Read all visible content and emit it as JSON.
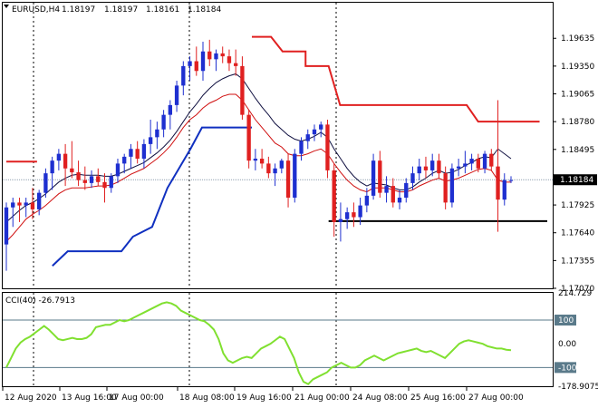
{
  "header": {
    "symbol": "EURUSD,H4",
    "open": "1.18197",
    "high": "1.18197",
    "low": "1.18161",
    "close": "1.18184"
  },
  "colors": {
    "bull": "#1e2fd0",
    "bear": "#e02020",
    "ma_fast": "#d01010",
    "ma_slow": "#101040",
    "stop_upper": "#e02020",
    "stop_lower": "#1030c0",
    "support": "#000000",
    "cci": "#80e030",
    "price_badge": "#000000"
  },
  "chart_data": [
    {
      "type": "candlestick",
      "ylim": [
        1.1707,
        1.2
      ],
      "y_ticks": [
        "1.19635",
        "1.19350",
        "1.19065",
        "1.18780",
        "1.18495",
        "1.17925",
        "1.17640",
        "1.17355",
        "1.17070"
      ],
      "current_price_label": "1.18184",
      "current_price": 1.18184,
      "x_ticks": [
        "12 Aug 2020",
        "13 Aug 16:00",
        "17 Aug 00:00",
        "18 Aug 08:00",
        "19 Aug 16:00",
        "21 Aug 00:00",
        "24 Aug 08:00",
        "25 Aug 16:00",
        "27 Aug 00:00"
      ],
      "candles": [
        [
          1.1752,
          1.1795,
          1.1725,
          1.179
        ],
        [
          1.179,
          1.18,
          1.177,
          1.1795
        ],
        [
          1.1795,
          1.18,
          1.1775,
          1.1792
        ],
        [
          1.1792,
          1.18,
          1.178,
          1.1795
        ],
        [
          1.1795,
          1.181,
          1.1778,
          1.1788
        ],
        [
          1.1788,
          1.1808,
          1.1782,
          1.1805
        ],
        [
          1.1805,
          1.183,
          1.18,
          1.1825
        ],
        [
          1.1825,
          1.1842,
          1.1808,
          1.1838
        ],
        [
          1.1838,
          1.185,
          1.1828,
          1.1845
        ],
        [
          1.1845,
          1.1855,
          1.1812,
          1.183
        ],
        [
          1.183,
          1.1858,
          1.182,
          1.1826
        ],
        [
          1.1826,
          1.1838,
          1.1812,
          1.1818
        ],
        [
          1.1818,
          1.1832,
          1.1808,
          1.1815
        ],
        [
          1.1815,
          1.1828,
          1.181,
          1.1822
        ],
        [
          1.1822,
          1.183,
          1.1812,
          1.1816
        ],
        [
          1.1816,
          1.1825,
          1.1795,
          1.181
        ],
        [
          1.181,
          1.1825,
          1.1805,
          1.1822
        ],
        [
          1.1822,
          1.184,
          1.1815,
          1.1835
        ],
        [
          1.1835,
          1.1845,
          1.1825,
          1.1842
        ],
        [
          1.1842,
          1.1855,
          1.183,
          1.185
        ],
        [
          1.185,
          1.1858,
          1.1835,
          1.184
        ],
        [
          1.184,
          1.186,
          1.183,
          1.1855
        ],
        [
          1.1855,
          1.188,
          1.1845,
          1.1862
        ],
        [
          1.1862,
          1.1878,
          1.185,
          1.187
        ],
        [
          1.187,
          1.189,
          1.1862,
          1.1885
        ],
        [
          1.1885,
          1.19,
          1.187,
          1.1895
        ],
        [
          1.1895,
          1.192,
          1.1888,
          1.1915
        ],
        [
          1.1915,
          1.194,
          1.1905,
          1.1935
        ],
        [
          1.1935,
          1.1945,
          1.192,
          1.194
        ],
        [
          1.194,
          1.1955,
          1.1925,
          1.193
        ],
        [
          1.193,
          1.196,
          1.192,
          1.195
        ],
        [
          1.195,
          1.1962,
          1.1935,
          1.1942
        ],
        [
          1.1942,
          1.1952,
          1.193,
          1.1948
        ],
        [
          1.1948,
          1.1955,
          1.1938,
          1.1945
        ],
        [
          1.1945,
          1.1952,
          1.193,
          1.1938
        ],
        [
          1.1938,
          1.1952,
          1.1925,
          1.1935
        ],
        [
          1.1935,
          1.1945,
          1.188,
          1.1885
        ],
        [
          1.1885,
          1.189,
          1.183,
          1.1838
        ],
        [
          1.1838,
          1.185,
          1.1828,
          1.184
        ],
        [
          1.184,
          1.185,
          1.183,
          1.1835
        ],
        [
          1.1835,
          1.1842,
          1.182,
          1.1825
        ],
        [
          1.1825,
          1.1835,
          1.1812,
          1.183
        ],
        [
          1.183,
          1.184,
          1.1825,
          1.1838
        ],
        [
          1.1838,
          1.1845,
          1.179,
          1.18
        ],
        [
          1.18,
          1.185,
          1.1795,
          1.1845
        ],
        [
          1.1845,
          1.1862,
          1.1838,
          1.1858
        ],
        [
          1.1858,
          1.187,
          1.185,
          1.1865
        ],
        [
          1.1865,
          1.1875,
          1.1858,
          1.187
        ],
        [
          1.187,
          1.1878,
          1.1862,
          1.1875
        ],
        [
          1.1875,
          1.188,
          1.182,
          1.1828
        ],
        [
          1.1828,
          1.1835,
          1.176,
          1.1775
        ],
        [
          1.1775,
          1.1795,
          1.1755,
          1.1778
        ],
        [
          1.1778,
          1.179,
          1.1768,
          1.1785
        ],
        [
          1.1785,
          1.1795,
          1.177,
          1.178
        ],
        [
          1.178,
          1.18,
          1.1772,
          1.1792
        ],
        [
          1.1792,
          1.181,
          1.1785,
          1.1802
        ],
        [
          1.1802,
          1.1845,
          1.1798,
          1.1838
        ],
        [
          1.1838,
          1.1848,
          1.18,
          1.1805
        ],
        [
          1.1805,
          1.1822,
          1.1795,
          1.1812
        ],
        [
          1.1812,
          1.182,
          1.179,
          1.1795
        ],
        [
          1.1795,
          1.1808,
          1.1788,
          1.18
        ],
        [
          1.18,
          1.182,
          1.1795,
          1.1815
        ],
        [
          1.1815,
          1.1832,
          1.1808,
          1.1825
        ],
        [
          1.1825,
          1.184,
          1.1818,
          1.1832
        ],
        [
          1.1832,
          1.1842,
          1.182,
          1.1828
        ],
        [
          1.1828,
          1.1845,
          1.1822,
          1.1838
        ],
        [
          1.1838,
          1.1845,
          1.182,
          1.1825
        ],
        [
          1.1825,
          1.1832,
          1.1788,
          1.1795
        ],
        [
          1.1795,
          1.1835,
          1.179,
          1.183
        ],
        [
          1.183,
          1.184,
          1.1822,
          1.1832
        ],
        [
          1.1832,
          1.1848,
          1.1825,
          1.1835
        ],
        [
          1.1835,
          1.1845,
          1.1828,
          1.184
        ],
        [
          1.184,
          1.1845,
          1.1826,
          1.183
        ],
        [
          1.183,
          1.1848,
          1.1825,
          1.1845
        ],
        [
          1.1845,
          1.185,
          1.1828,
          1.1832
        ],
        [
          1.1832,
          1.19,
          1.1765,
          1.1798
        ],
        [
          1.1798,
          1.1825,
          1.1792,
          1.1818
        ],
        [
          1.1818,
          1.1822,
          1.1815,
          1.1818
        ]
      ],
      "ma_fast": [
        1.1755,
        1.1762,
        1.177,
        1.1778,
        1.1783,
        1.1787,
        1.1792,
        1.1798,
        1.1804,
        1.1808,
        1.181,
        1.181,
        1.181,
        1.1811,
        1.1812,
        1.1812,
        1.1813,
        1.1816,
        1.182,
        1.1824,
        1.1827,
        1.183,
        1.1835,
        1.184,
        1.1846,
        1.1853,
        1.1862,
        1.1872,
        1.188,
        1.1885,
        1.1892,
        1.1897,
        1.19,
        1.1904,
        1.1906,
        1.1906,
        1.19,
        1.189,
        1.188,
        1.1872,
        1.1864,
        1.1856,
        1.1852,
        1.1845,
        1.1843,
        1.1843,
        1.1845,
        1.1848,
        1.185,
        1.1845,
        1.1835,
        1.1826,
        1.1818,
        1.1812,
        1.1808,
        1.1806,
        1.181,
        1.181,
        1.181,
        1.1808,
        1.1806,
        1.1806,
        1.1808,
        1.1812,
        1.1815,
        1.1818,
        1.182,
        1.1817,
        1.1818,
        1.182,
        1.1823,
        1.1826,
        1.1829,
        1.183,
        1.1828,
        1.1818,
        1.1816,
        1.1816
      ],
      "ma_slow": [
        1.1775,
        1.1781,
        1.1787,
        1.1792,
        1.1795,
        1.1799,
        1.1804,
        1.181,
        1.1816,
        1.182,
        1.1823,
        1.1824,
        1.1823,
        1.1823,
        1.1823,
        1.1822,
        1.1822,
        1.1824,
        1.1827,
        1.183,
        1.1833,
        1.1836,
        1.1841,
        1.1846,
        1.1852,
        1.1859,
        1.1868,
        1.1878,
        1.1888,
        1.1896,
        1.1905,
        1.1912,
        1.1918,
        1.1922,
        1.1925,
        1.1927,
        1.1922,
        1.1912,
        1.1902,
        1.1893,
        1.1885,
        1.1876,
        1.187,
        1.1864,
        1.186,
        1.1858,
        1.186,
        1.1863,
        1.1867,
        1.1862,
        1.185,
        1.184,
        1.183,
        1.1822,
        1.1816,
        1.1812,
        1.1815,
        1.1814,
        1.1813,
        1.181,
        1.1808,
        1.1808,
        1.1811,
        1.1816,
        1.182,
        1.1825,
        1.1828,
        1.1825,
        1.1826,
        1.1829,
        1.1833,
        1.1836,
        1.184,
        1.1842,
        1.1841,
        1.185,
        1.1845,
        1.184
      ],
      "stop_upper": [
        [
          0,
          1.1837
        ],
        [
          8,
          1.1837
        ],
        [
          8,
          null
        ],
        [
          64,
          1.1965
        ],
        [
          69,
          1.1965
        ],
        [
          72,
          1.195
        ],
        [
          78,
          1.195
        ],
        [
          78,
          1.1935
        ],
        [
          84,
          1.1935
        ],
        [
          87,
          1.1895
        ],
        [
          120,
          1.1895
        ],
        [
          123,
          1.1878
        ],
        [
          139,
          1.1878
        ]
      ],
      "stop_lower": [
        [
          12,
          1.173
        ],
        [
          16,
          1.1745
        ],
        [
          30,
          1.1745
        ],
        [
          33,
          1.176
        ],
        [
          38,
          1.177
        ],
        [
          42,
          1.181
        ],
        [
          48,
          1.185
        ],
        [
          51,
          1.1872
        ],
        [
          62,
          1.1872
        ],
        [
          64,
          1.1872
        ]
      ],
      "support": {
        "from": 84,
        "to": 141,
        "value": 1.1776
      }
    },
    {
      "type": "line",
      "title": "CCI(40) -26.7913",
      "ylim": [
        -178.9075,
        214.729
      ],
      "y_ticks": [
        "214.729",
        "100",
        "0.00",
        "-100",
        "-178.9075"
      ],
      "levels": [
        100,
        -100
      ],
      "values": [
        -100,
        -60,
        -20,
        5,
        20,
        30,
        45,
        60,
        75,
        60,
        40,
        20,
        15,
        20,
        25,
        20,
        20,
        25,
        40,
        70,
        75,
        80,
        80,
        90,
        100,
        95,
        100,
        110,
        120,
        130,
        140,
        150,
        160,
        170,
        175,
        170,
        160,
        140,
        130,
        120,
        110,
        100,
        95,
        80,
        60,
        20,
        -40,
        -70,
        -80,
        -70,
        -60,
        -55,
        -60,
        -40,
        -20,
        -10,
        0,
        15,
        30,
        20,
        -20,
        -60,
        -120,
        -160,
        -170,
        -150,
        -140,
        -130,
        -120,
        -100,
        -90,
        -80,
        -90,
        -100,
        -100,
        -90,
        -70,
        -60,
        -50,
        -60,
        -70,
        -60,
        -50,
        -40,
        -35,
        -30,
        -25,
        -20,
        -30,
        -35,
        -30,
        -40,
        -50,
        -60,
        -40,
        -20,
        0,
        10,
        15,
        10,
        5,
        0,
        -10,
        -15,
        -20,
        -20,
        -25,
        -27
      ]
    }
  ]
}
